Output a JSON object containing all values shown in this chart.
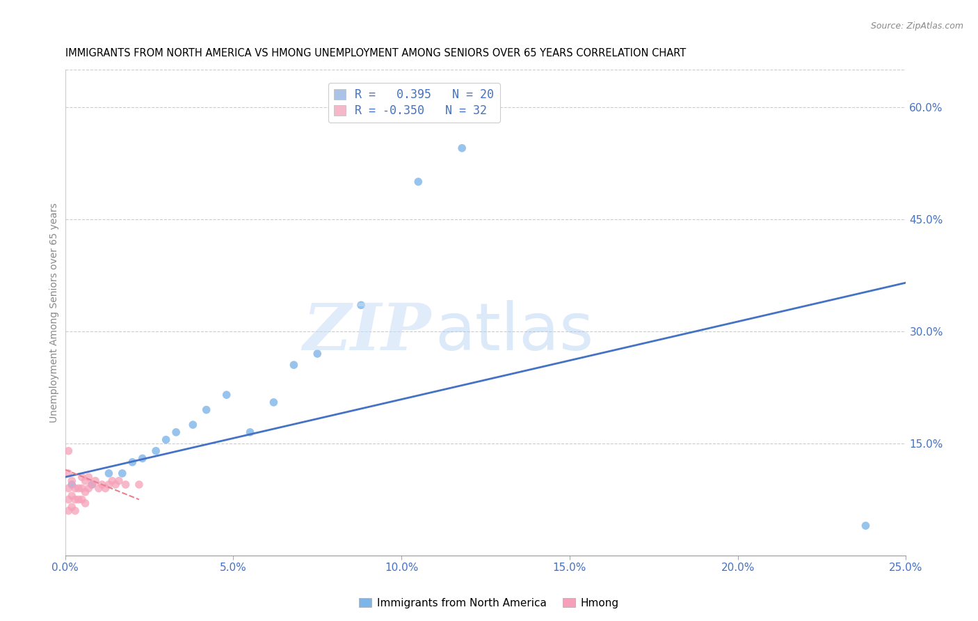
{
  "title": "IMMIGRANTS FROM NORTH AMERICA VS HMONG UNEMPLOYMENT AMONG SENIORS OVER 65 YEARS CORRELATION CHART",
  "source": "Source: ZipAtlas.com",
  "ylabel": "Unemployment Among Seniors over 65 years",
  "xlim": [
    0.0,
    0.25
  ],
  "ylim": [
    0.0,
    0.65
  ],
  "xtick_labels": [
    "0.0%",
    "5.0%",
    "10.0%",
    "15.0%",
    "20.0%",
    "25.0%"
  ],
  "xtick_values": [
    0.0,
    0.05,
    0.1,
    0.15,
    0.2,
    0.25
  ],
  "right_ytick_labels": [
    "60.0%",
    "45.0%",
    "30.0%",
    "15.0%"
  ],
  "right_ytick_values": [
    0.6,
    0.45,
    0.3,
    0.15
  ],
  "legend_entries": [
    {
      "label": "R =   0.395   N = 20",
      "color": "#aac4e8"
    },
    {
      "label": "R = -0.350   N = 32",
      "color": "#f5b8c8"
    }
  ],
  "blue_scatter_x": [
    0.002,
    0.008,
    0.013,
    0.017,
    0.02,
    0.023,
    0.027,
    0.03,
    0.033,
    0.038,
    0.042,
    0.048,
    0.055,
    0.062,
    0.068,
    0.075,
    0.088,
    0.105,
    0.118,
    0.238
  ],
  "blue_scatter_y": [
    0.095,
    0.095,
    0.11,
    0.11,
    0.125,
    0.13,
    0.14,
    0.155,
    0.165,
    0.175,
    0.195,
    0.215,
    0.165,
    0.205,
    0.255,
    0.27,
    0.335,
    0.5,
    0.545,
    0.04
  ],
  "pink_scatter_x": [
    0.001,
    0.001,
    0.001,
    0.001,
    0.001,
    0.002,
    0.002,
    0.002,
    0.003,
    0.003,
    0.003,
    0.004,
    0.004,
    0.005,
    0.005,
    0.005,
    0.006,
    0.006,
    0.006,
    0.007,
    0.007,
    0.008,
    0.009,
    0.01,
    0.011,
    0.012,
    0.013,
    0.014,
    0.015,
    0.016,
    0.018,
    0.022
  ],
  "pink_scatter_y": [
    0.14,
    0.11,
    0.09,
    0.075,
    0.06,
    0.1,
    0.08,
    0.065,
    0.09,
    0.075,
    0.06,
    0.09,
    0.075,
    0.105,
    0.09,
    0.075,
    0.1,
    0.085,
    0.07,
    0.105,
    0.09,
    0.095,
    0.1,
    0.09,
    0.095,
    0.09,
    0.095,
    0.1,
    0.095,
    0.1,
    0.095,
    0.095
  ],
  "blue_line_x": [
    0.0,
    0.25
  ],
  "blue_line_y": [
    0.105,
    0.365
  ],
  "pink_line_x": [
    0.0,
    0.022
  ],
  "pink_line_y": [
    0.115,
    0.075
  ],
  "blue_scatter_color": "#7db5e8",
  "pink_scatter_color": "#f5a0b8",
  "blue_line_color": "#4472c4",
  "pink_line_color": "#e88090",
  "watermark_zip": "ZIP",
  "watermark_atlas": "atlas",
  "scatter_size": 70
}
